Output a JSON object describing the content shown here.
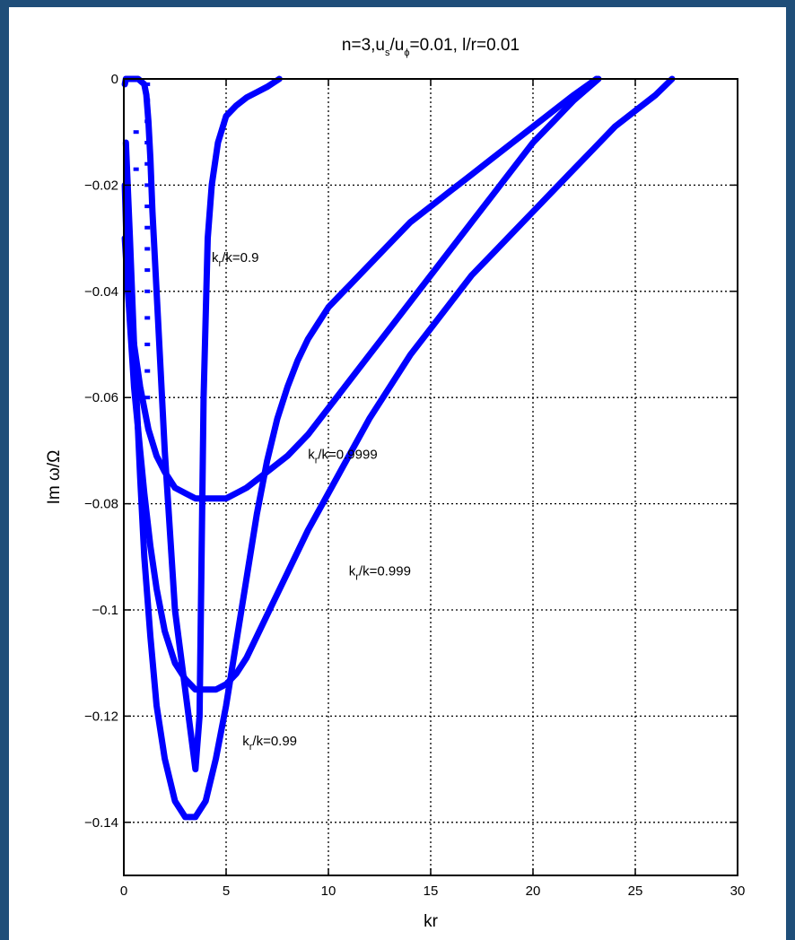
{
  "chart_data": {
    "type": "line",
    "title": {
      "prefix": "n=3,u",
      "sub1": "s",
      "mid": "/u",
      "sub2": "ϕ",
      "suffix": "=0.01, l/r=0.01"
    },
    "xlabel": "kr",
    "ylabel": "Im ω/Ω",
    "xlim": [
      0,
      30
    ],
    "ylim": [
      -0.15,
      0
    ],
    "xticks": [
      0,
      5,
      10,
      15,
      20,
      25,
      30
    ],
    "xtick_labels": [
      "0",
      "5",
      "10",
      "15",
      "20",
      "25",
      "30"
    ],
    "yticks": [
      0,
      -0.02,
      -0.04,
      -0.06,
      -0.08,
      -0.1,
      -0.12,
      -0.14
    ],
    "ytick_labels": [
      "0",
      "−0.02",
      "−0.04",
      "−0.06",
      "−0.08",
      "−0.1",
      "−0.12",
      "−0.14"
    ],
    "grid": true,
    "series_color": "#0000ff",
    "series": [
      {
        "label": "kr/k=0.9",
        "x": [
          0.05,
          0.1,
          0.2,
          0.4,
          0.7,
          1.0,
          1.1,
          1.2,
          1.3,
          1.4,
          1.6,
          2.0,
          2.5,
          3.0,
          3.5,
          3.7,
          3.9,
          4.1,
          4.3,
          4.6,
          5.0,
          5.5,
          6.0,
          6.5,
          7.0,
          7.4,
          7.6
        ],
        "y": [
          -0.001,
          0.0,
          0.0,
          0.0,
          0.0,
          -0.001,
          -0.003,
          -0.008,
          -0.015,
          -0.025,
          -0.04,
          -0.07,
          -0.1,
          -0.115,
          -0.13,
          -0.12,
          -0.06,
          -0.03,
          -0.02,
          -0.012,
          -0.007,
          -0.005,
          -0.0035,
          -0.0025,
          -0.0015,
          -0.0005,
          0.0
        ]
      },
      {
        "label": "kr/k=0.99",
        "x": [
          0.1,
          0.3,
          0.5,
          0.8,
          1.0,
          1.3,
          1.6,
          2.0,
          2.5,
          3.0,
          3.5,
          4.0,
          4.5,
          5.0,
          5.5,
          6.0,
          6.5,
          7.0,
          7.5,
          8.0,
          8.5,
          9.0,
          9.5,
          10.0,
          10.5,
          11,
          12,
          13,
          14,
          15,
          16,
          17,
          18,
          19,
          20,
          21,
          22,
          23.1
        ],
        "y": [
          -0.012,
          -0.03,
          -0.05,
          -0.075,
          -0.09,
          -0.105,
          -0.118,
          -0.128,
          -0.136,
          -0.139,
          -0.139,
          -0.136,
          -0.128,
          -0.118,
          -0.106,
          -0.094,
          -0.082,
          -0.072,
          -0.064,
          -0.058,
          -0.053,
          -0.049,
          -0.046,
          -0.043,
          -0.041,
          -0.039,
          -0.035,
          -0.031,
          -0.027,
          -0.024,
          -0.021,
          -0.018,
          -0.015,
          -0.012,
          -0.009,
          -0.006,
          -0.003,
          0.0
        ]
      },
      {
        "label": "kr/k=0.999",
        "x": [
          0.05,
          0.2,
          0.5,
          0.8,
          1.0,
          1.3,
          1.6,
          2.0,
          2.5,
          3.0,
          3.5,
          4.0,
          4.5,
          5.0,
          5.5,
          6.0,
          7,
          8,
          9,
          10,
          11,
          12,
          13,
          14,
          15,
          16,
          17,
          18,
          19,
          20,
          21,
          22,
          23,
          24,
          25,
          26,
          26.8
        ],
        "y": [
          -0.02,
          -0.04,
          -0.058,
          -0.07,
          -0.078,
          -0.088,
          -0.096,
          -0.104,
          -0.11,
          -0.113,
          -0.115,
          -0.115,
          -0.115,
          -0.114,
          -0.112,
          -0.109,
          -0.101,
          -0.093,
          -0.085,
          -0.078,
          -0.071,
          -0.064,
          -0.058,
          -0.052,
          -0.047,
          -0.042,
          -0.037,
          -0.033,
          -0.029,
          -0.025,
          -0.021,
          -0.017,
          -0.013,
          -0.009,
          -0.006,
          -0.003,
          0.0
        ]
      },
      {
        "label": "kr/k=0.9999",
        "x": [
          0.05,
          0.2,
          0.5,
          0.8,
          1.2,
          1.6,
          2.0,
          2.5,
          3.0,
          3.5,
          4.0,
          4.5,
          5.0,
          5.5,
          6.0,
          7,
          8,
          9,
          10,
          11,
          12,
          13,
          14,
          15,
          16,
          17,
          18,
          19,
          20,
          21,
          22,
          23.2
        ],
        "y": [
          -0.03,
          -0.04,
          -0.05,
          -0.058,
          -0.066,
          -0.071,
          -0.074,
          -0.077,
          -0.078,
          -0.079,
          -0.079,
          -0.079,
          -0.079,
          -0.078,
          -0.077,
          -0.074,
          -0.071,
          -0.067,
          -0.062,
          -0.057,
          -0.052,
          -0.047,
          -0.042,
          -0.037,
          -0.032,
          -0.027,
          -0.022,
          -0.017,
          -0.012,
          -0.008,
          -0.004,
          0.0
        ]
      }
    ],
    "scatter_artifacts": [
      {
        "x": 1.15,
        "y": [
          -0.001,
          -0.004,
          -0.008,
          -0.012,
          -0.016,
          -0.02,
          -0.024,
          -0.028,
          -0.032,
          -0.036,
          -0.04,
          -0.045,
          -0.05,
          -0.055,
          -0.06
        ]
      },
      {
        "x": 0.15,
        "y": [
          -0.015,
          -0.02,
          -0.024
        ]
      },
      {
        "x": 0.6,
        "y": [
          -0.01,
          -0.017
        ]
      }
    ],
    "annotations": [
      {
        "base": "k",
        "sub": "r",
        "rest": "/k=0.9",
        "x": 4.3,
        "y": -0.0345
      },
      {
        "base": "k",
        "sub": "r",
        "rest": "/k=0.9999",
        "x": 9.0,
        "y": -0.0715
      },
      {
        "base": "k",
        "sub": "r",
        "rest": "/k=0.999",
        "x": 11.0,
        "y": -0.0935
      },
      {
        "base": "k",
        "sub": "r",
        "rest": "/k=0.99",
        "x": 5.8,
        "y": -0.1255
      }
    ]
  }
}
